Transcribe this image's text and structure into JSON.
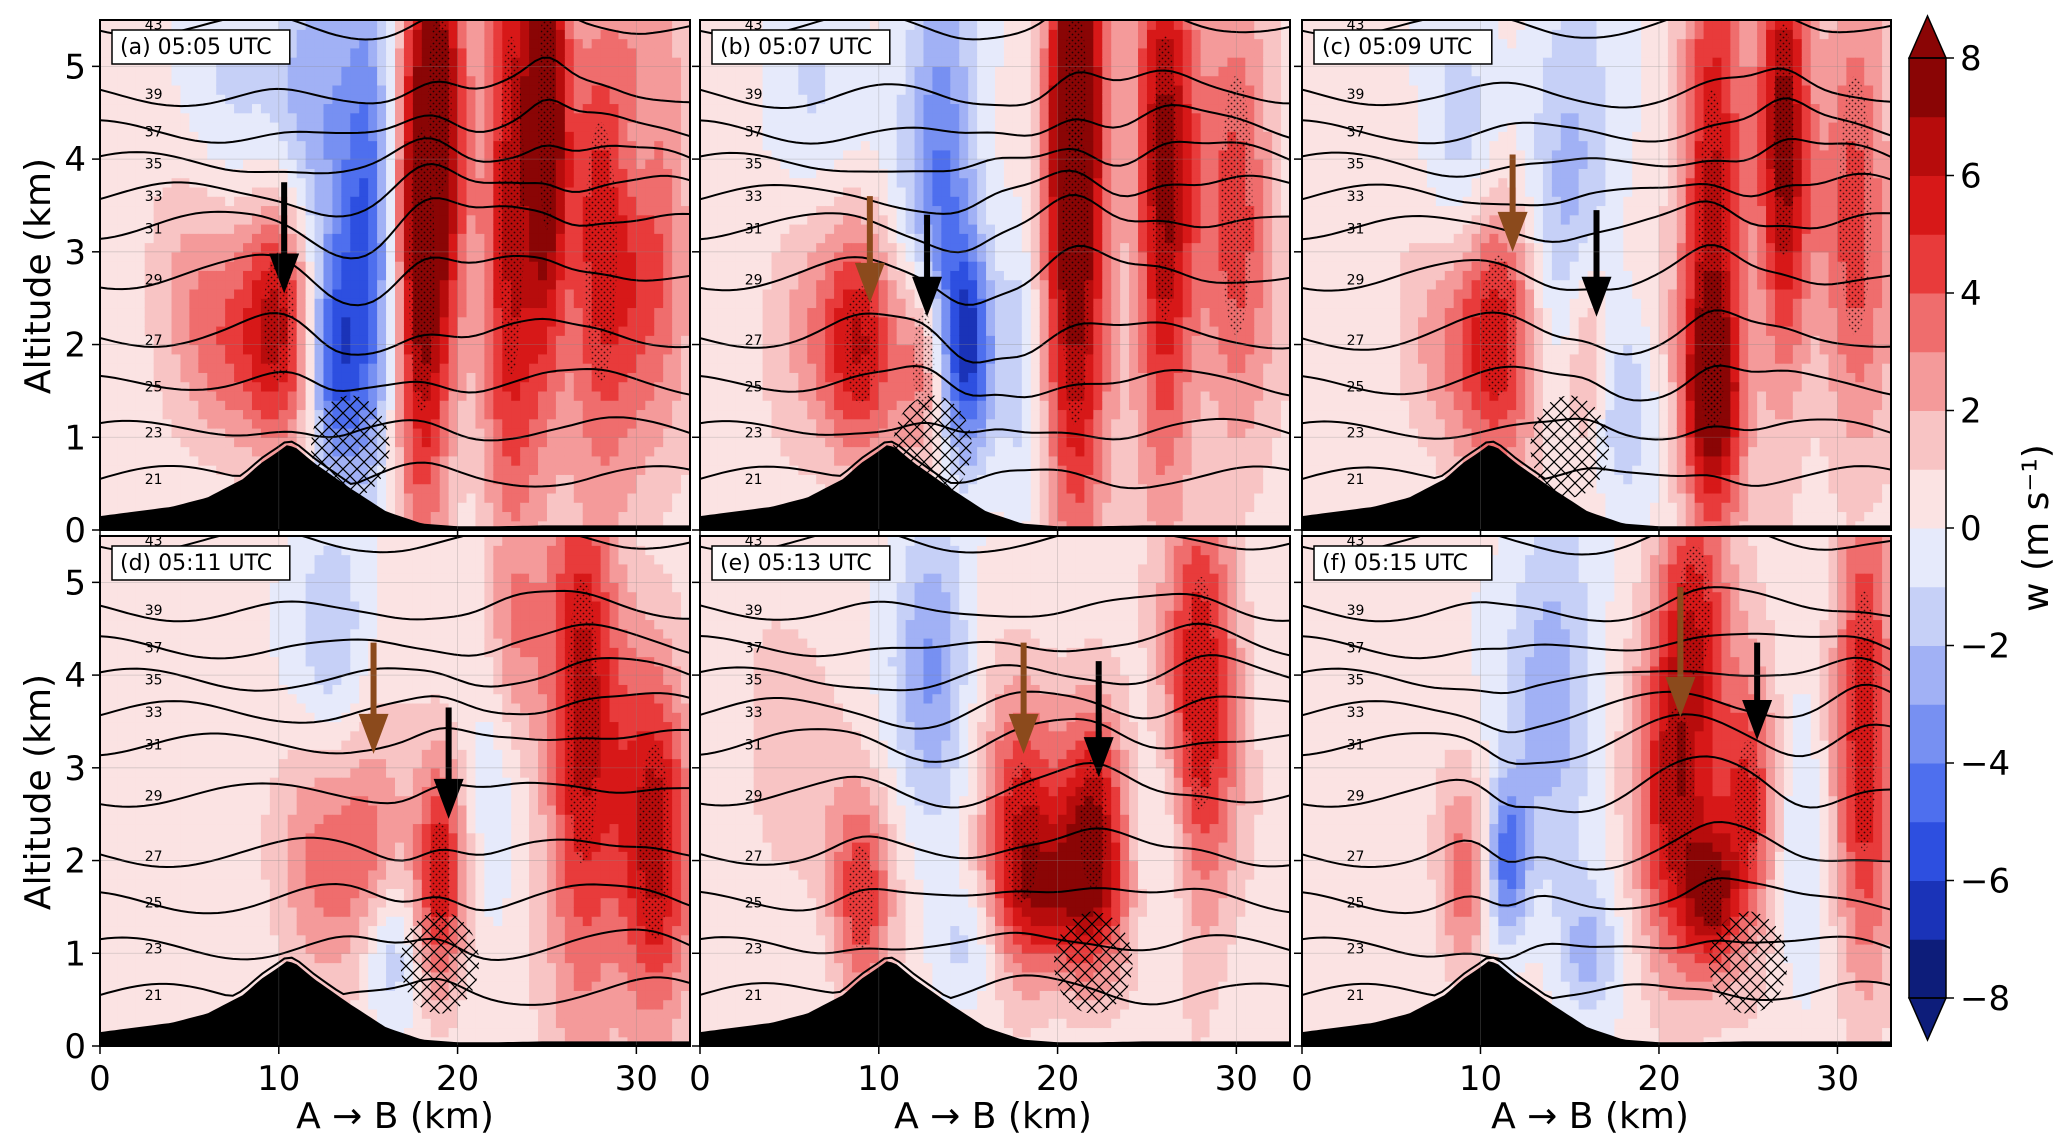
{
  "figure": {
    "xlabel": "A → B (km)",
    "ylabel": "Altitude (km)",
    "colorbar_label": "w (m s⁻¹)"
  },
  "colors": {
    "terrain": "#000000",
    "brown_arrow": "#8b4a1c",
    "black_arrow": "#000000"
  },
  "chart_data": {
    "type": "heatmap",
    "variable": "w",
    "x_range": [
      0,
      33
    ],
    "y_range": [
      0,
      5.5
    ],
    "x_ticks": [
      0,
      10,
      20,
      30
    ],
    "y_ticks": [
      0,
      1,
      2,
      3,
      4,
      5
    ],
    "colorbar": {
      "levels": [
        -8,
        -7,
        -6,
        -5,
        -4,
        -3,
        -2,
        -1,
        0,
        1,
        2,
        3,
        4,
        5,
        6,
        7,
        8
      ],
      "ticks": [
        8,
        6,
        4,
        2,
        0,
        -2,
        -4,
        -6,
        -8
      ],
      "tick_labels": [
        "8",
        "6",
        "4",
        "2",
        "0",
        "−2",
        "−4",
        "−6",
        "−8"
      ],
      "colors": [
        "#0d1d7a",
        "#1a33b8",
        "#2d4fe0",
        "#4e6fee",
        "#7790f2",
        "#a1b1f5",
        "#c6d0f7",
        "#e6eafb",
        "#fbe3e3",
        "#f8c4c4",
        "#f49a9a",
        "#ef6d6d",
        "#e83b3b",
        "#d71818",
        "#b70c0c",
        "#8a0505"
      ]
    },
    "isentrope_levels": [
      21,
      23,
      25,
      27,
      29,
      31,
      33,
      35,
      37,
      39,
      43
    ],
    "isentrope_labels": [
      "21",
      "23",
      "25",
      "27",
      "29",
      "31",
      "33",
      "35",
      "37",
      "39",
      "43"
    ],
    "terrain": {
      "x": [
        0,
        2,
        4,
        6,
        8,
        9,
        10,
        10.5,
        11,
        12,
        14,
        16,
        18,
        20,
        22,
        25,
        28,
        33
      ],
      "z": [
        0.15,
        0.2,
        0.25,
        0.35,
        0.55,
        0.72,
        0.85,
        0.92,
        0.88,
        0.72,
        0.45,
        0.2,
        0.07,
        0.04,
        0.04,
        0.05,
        0.05,
        0.05
      ]
    },
    "panels": [
      {
        "id": "a",
        "title": "(a) 05:05 UTC",
        "arrows": [
          {
            "color": "black",
            "x": 10.3,
            "z_top": 3.75,
            "z_tip": 2.55
          }
        ],
        "updrafts": [
          {
            "x": 10,
            "z": 2.3,
            "sx": 1.4,
            "sz": 1.0,
            "w": 5.5
          },
          {
            "x": 7,
            "z": 1.9,
            "sx": 1.8,
            "sz": 0.8,
            "w": 2.5
          },
          {
            "x": 5,
            "z": 2.8,
            "sx": 2.0,
            "sz": 1.0,
            "w": 1.8
          },
          {
            "x": 18,
            "z": 2.8,
            "sx": 1.2,
            "sz": 2.2,
            "w": 7.0
          },
          {
            "x": 19,
            "z": 4.6,
            "sx": 1.1,
            "sz": 1.4,
            "w": 6.0
          },
          {
            "x": 23,
            "z": 3.5,
            "sx": 1.2,
            "sz": 2.6,
            "w": 6.0
          },
          {
            "x": 25,
            "z": 4.5,
            "sx": 0.8,
            "sz": 1.8,
            "w": 7.5
          },
          {
            "x": 28,
            "z": 3.0,
            "sx": 1.5,
            "sz": 2.0,
            "w": 5.0
          },
          {
            "x": 31,
            "z": 3.5,
            "sx": 1.5,
            "sz": 2.0,
            "w": 3.5
          },
          {
            "x": 13,
            "z": 1.8,
            "sx": 1.0,
            "sz": 0.9,
            "w": -5.0
          },
          {
            "x": 15,
            "z": 3.2,
            "sx": 1.2,
            "sz": 2.0,
            "w": -5.5
          },
          {
            "x": 12,
            "z": 4.7,
            "sx": 1.5,
            "sz": 1.2,
            "w": -3.0
          },
          {
            "x": 7,
            "z": 4.5,
            "sx": 2.5,
            "sz": 1.0,
            "w": -1.5
          },
          {
            "x": 30,
            "z": 4.0,
            "sx": 1.0,
            "sz": 0.6,
            "w": -2.0
          }
        ]
      },
      {
        "id": "b",
        "title": "(b) 05:07 UTC",
        "arrows": [
          {
            "color": "brown",
            "x": 9.5,
            "z_top": 3.6,
            "z_tip": 2.45
          },
          {
            "color": "black",
            "x": 12.7,
            "z_top": 3.4,
            "z_tip": 2.3
          }
        ],
        "updrafts": [
          {
            "x": 9,
            "z": 2.0,
            "sx": 1.5,
            "sz": 0.9,
            "w": 5.0
          },
          {
            "x": 12.5,
            "z": 1.8,
            "sx": 1.0,
            "sz": 0.8,
            "w": 4.0
          },
          {
            "x": 6,
            "z": 2.1,
            "sx": 2.0,
            "sz": 1.0,
            "w": 2.0
          },
          {
            "x": 21,
            "z": 2.8,
            "sx": 1.3,
            "sz": 2.4,
            "w": 6.5
          },
          {
            "x": 21,
            "z": 4.8,
            "sx": 1.0,
            "sz": 1.2,
            "w": 6.5
          },
          {
            "x": 26,
            "z": 3.8,
            "sx": 1.2,
            "sz": 2.2,
            "w": 7.0
          },
          {
            "x": 30,
            "z": 3.5,
            "sx": 1.5,
            "sz": 2.0,
            "w": 4.0
          },
          {
            "x": 15,
            "z": 1.9,
            "sx": 1.0,
            "sz": 0.8,
            "w": -5.5
          },
          {
            "x": 13.5,
            "z": 3.8,
            "sx": 1.5,
            "sz": 1.8,
            "w": -4.5
          },
          {
            "x": 6,
            "z": 4.6,
            "sx": 2.0,
            "sz": 1.0,
            "w": -1.5
          },
          {
            "x": 18,
            "z": 2.0,
            "sx": 0.8,
            "sz": 1.2,
            "w": -2.0
          }
        ]
      },
      {
        "id": "c",
        "title": "(c) 05:09 UTC",
        "arrows": [
          {
            "color": "brown",
            "x": 11.8,
            "z_top": 4.05,
            "z_tip": 3.0
          },
          {
            "color": "black",
            "x": 16.5,
            "z_top": 3.45,
            "z_tip": 2.3
          }
        ],
        "updrafts": [
          {
            "x": 11,
            "z": 2.2,
            "sx": 1.7,
            "sz": 1.1,
            "w": 5.0
          },
          {
            "x": 16,
            "z": 1.9,
            "sx": 0.9,
            "sz": 0.8,
            "w": 3.0
          },
          {
            "x": 8,
            "z": 2.0,
            "sx": 2.0,
            "sz": 0.9,
            "w": 2.0
          },
          {
            "x": 23,
            "z": 3.0,
            "sx": 1.3,
            "sz": 2.5,
            "w": 6.5
          },
          {
            "x": 23,
            "z": 1.5,
            "sx": 1.0,
            "sz": 0.6,
            "w": 4.5
          },
          {
            "x": 27,
            "z": 4.2,
            "sx": 1.0,
            "sz": 1.8,
            "w": 7.0
          },
          {
            "x": 31,
            "z": 3.5,
            "sx": 1.5,
            "sz": 2.0,
            "w": 4.0
          },
          {
            "x": 9,
            "z": 4.0,
            "sx": 1.5,
            "sz": 1.2,
            "w": -2.0
          },
          {
            "x": 15,
            "z": 3.8,
            "sx": 1.8,
            "sz": 1.5,
            "w": -3.0
          },
          {
            "x": 18,
            "z": 1.3,
            "sx": 1.2,
            "sz": 0.7,
            "w": -2.0
          }
        ]
      },
      {
        "id": "d",
        "title": "(d) 05:11 UTC",
        "arrows": [
          {
            "color": "brown",
            "x": 15.3,
            "z_top": 4.35,
            "z_tip": 3.15
          },
          {
            "color": "black",
            "x": 19.5,
            "z_top": 3.65,
            "z_tip": 2.45
          }
        ],
        "updrafts": [
          {
            "x": 15,
            "z": 2.0,
            "sx": 1.5,
            "sz": 1.0,
            "w": 3.5
          },
          {
            "x": 19,
            "z": 1.8,
            "sx": 1.0,
            "sz": 0.9,
            "w": 5.5
          },
          {
            "x": 12,
            "z": 2.2,
            "sx": 1.5,
            "sz": 1.0,
            "w": 2.5
          },
          {
            "x": 27,
            "z": 3.5,
            "sx": 1.5,
            "sz": 2.2,
            "w": 6.0
          },
          {
            "x": 31,
            "z": 2.2,
            "sx": 1.5,
            "sz": 1.5,
            "w": 6.0
          },
          {
            "x": 23,
            "z": 4.5,
            "sx": 1.2,
            "sz": 1.0,
            "w": 3.0
          },
          {
            "x": 13,
            "z": 4.5,
            "sx": 1.5,
            "sz": 1.0,
            "w": -2.5
          },
          {
            "x": 16,
            "z": 1.0,
            "sx": 1.2,
            "sz": 0.6,
            "w": -3.0
          },
          {
            "x": 22,
            "z": 2.8,
            "sx": 1.0,
            "sz": 1.2,
            "w": -1.5
          }
        ]
      },
      {
        "id": "e",
        "title": "(e) 05:13 UTC",
        "arrows": [
          {
            "color": "brown",
            "x": 18.1,
            "z_top": 4.35,
            "z_tip": 3.15
          },
          {
            "color": "black",
            "x": 22.3,
            "z_top": 4.15,
            "z_tip": 2.9
          }
        ],
        "updrafts": [
          {
            "x": 18,
            "z": 2.3,
            "sx": 1.6,
            "sz": 1.1,
            "w": 5.0
          },
          {
            "x": 22,
            "z": 2.4,
            "sx": 1.3,
            "sz": 1.0,
            "w": 6.0
          },
          {
            "x": 20,
            "z": 1.6,
            "sx": 2.5,
            "sz": 0.6,
            "w": 3.5
          },
          {
            "x": 28,
            "z": 3.8,
            "sx": 1.5,
            "sz": 1.8,
            "w": 5.5
          },
          {
            "x": 9,
            "z": 1.6,
            "sx": 1.2,
            "sz": 0.8,
            "w": 4.5
          },
          {
            "x": 5,
            "z": 3.0,
            "sx": 2.0,
            "sz": 1.0,
            "w": 1.5
          },
          {
            "x": 13,
            "z": 4.2,
            "sx": 1.5,
            "sz": 1.2,
            "w": -3.5
          },
          {
            "x": 15,
            "z": 1.1,
            "sx": 1.5,
            "sz": 0.5,
            "w": -2.0
          },
          {
            "x": 26,
            "z": 2.0,
            "sx": 1.0,
            "sz": 1.0,
            "w": -1.5
          }
        ]
      },
      {
        "id": "f",
        "title": "(f) 05:15 UTC",
        "arrows": [
          {
            "color": "brown",
            "x": 21.2,
            "z_top": 4.95,
            "z_tip": 3.55
          },
          {
            "color": "black",
            "x": 25.5,
            "z_top": 4.35,
            "z_tip": 3.3
          }
        ],
        "updrafts": [
          {
            "x": 21,
            "z": 2.7,
            "sx": 1.6,
            "sz": 1.4,
            "w": 6.0
          },
          {
            "x": 25,
            "z": 2.6,
            "sx": 1.2,
            "sz": 1.0,
            "w": 5.0
          },
          {
            "x": 23,
            "z": 1.6,
            "sx": 1.0,
            "sz": 0.5,
            "w": 5.0
          },
          {
            "x": 22,
            "z": 4.7,
            "sx": 1.5,
            "sz": 1.0,
            "w": 4.0
          },
          {
            "x": 31.5,
            "z": 3.5,
            "sx": 1.2,
            "sz": 2.0,
            "w": 5.5
          },
          {
            "x": 9,
            "z": 1.8,
            "sx": 1.0,
            "sz": 0.8,
            "w": 3.0
          },
          {
            "x": 11.5,
            "z": 2.0,
            "sx": 0.8,
            "sz": 0.6,
            "w": -5.0
          },
          {
            "x": 14,
            "z": 4.0,
            "sx": 1.8,
            "sz": 1.5,
            "w": -3.0
          },
          {
            "x": 16,
            "z": 1.0,
            "sx": 1.2,
            "sz": 0.5,
            "w": -2.5
          },
          {
            "x": 28,
            "z": 2.5,
            "sx": 1.0,
            "sz": 1.2,
            "w": -1.5
          }
        ]
      }
    ]
  }
}
